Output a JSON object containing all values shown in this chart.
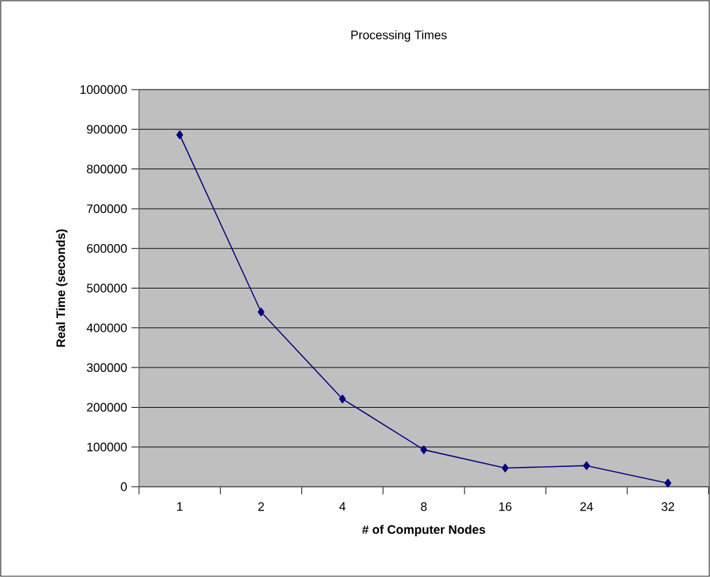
{
  "chart_data": {
    "type": "line",
    "title": "Processing Times",
    "xlabel": "# of Computer Nodes",
    "ylabel": "Real Time (seconds)",
    "categories": [
      "1",
      "2",
      "4",
      "8",
      "16",
      "24",
      "32"
    ],
    "series": [
      {
        "color": "#000080",
        "values": [
          886000,
          440000,
          221000,
          93000,
          47000,
          53000,
          9000
        ]
      }
    ],
    "ylim": [
      0,
      1000000
    ],
    "yticks": [
      0,
      100000,
      200000,
      300000,
      400000,
      500000,
      600000,
      700000,
      800000,
      900000,
      1000000
    ],
    "grid": "y",
    "marker": "diamond",
    "line_style": "solid"
  }
}
